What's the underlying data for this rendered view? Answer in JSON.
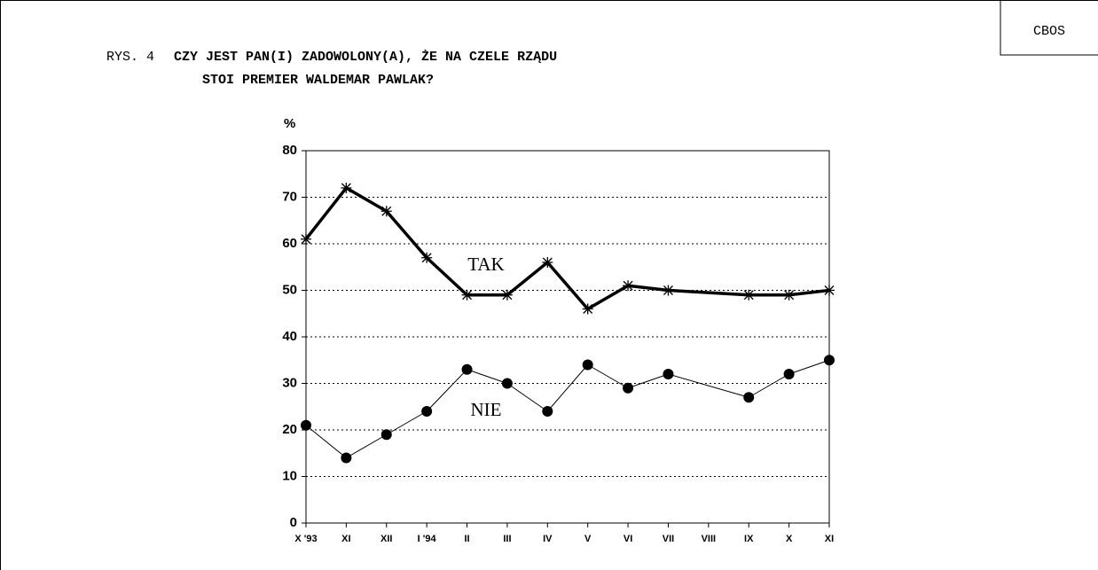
{
  "header": {
    "badge": "CBOS"
  },
  "chart_data": {
    "type": "line",
    "figure_label": "RYS. 4",
    "title": [
      "CZY JEST PAN(I) ZADOWOLONY(A), ŻE NA CZELE RZĄDU",
      "STOI PREMIER WALDEMAR PAWLAK?"
    ],
    "y_label": "%",
    "categories": [
      "X '93",
      "XI",
      "XII",
      "I '94",
      "II",
      "III",
      "IV",
      "V",
      "VI",
      "VII",
      "VIII",
      "IX",
      "X",
      "XI"
    ],
    "series": [
      {
        "name": "TAK",
        "color": "#000000",
        "marker": "star",
        "values": [
          61,
          72,
          67,
          57,
          49,
          49,
          56,
          46,
          51,
          50,
          null,
          49,
          49,
          50
        ]
      },
      {
        "name": "NIE",
        "color": "#000000",
        "marker": "dot",
        "values": [
          21,
          14,
          19,
          24,
          33,
          30,
          24,
          34,
          29,
          32,
          null,
          27,
          32,
          35
        ]
      }
    ],
    "ylim": [
      0,
      80
    ],
    "yticks": [
      0,
      10,
      20,
      30,
      40,
      50,
      60,
      70,
      80
    ],
    "grid": true
  }
}
